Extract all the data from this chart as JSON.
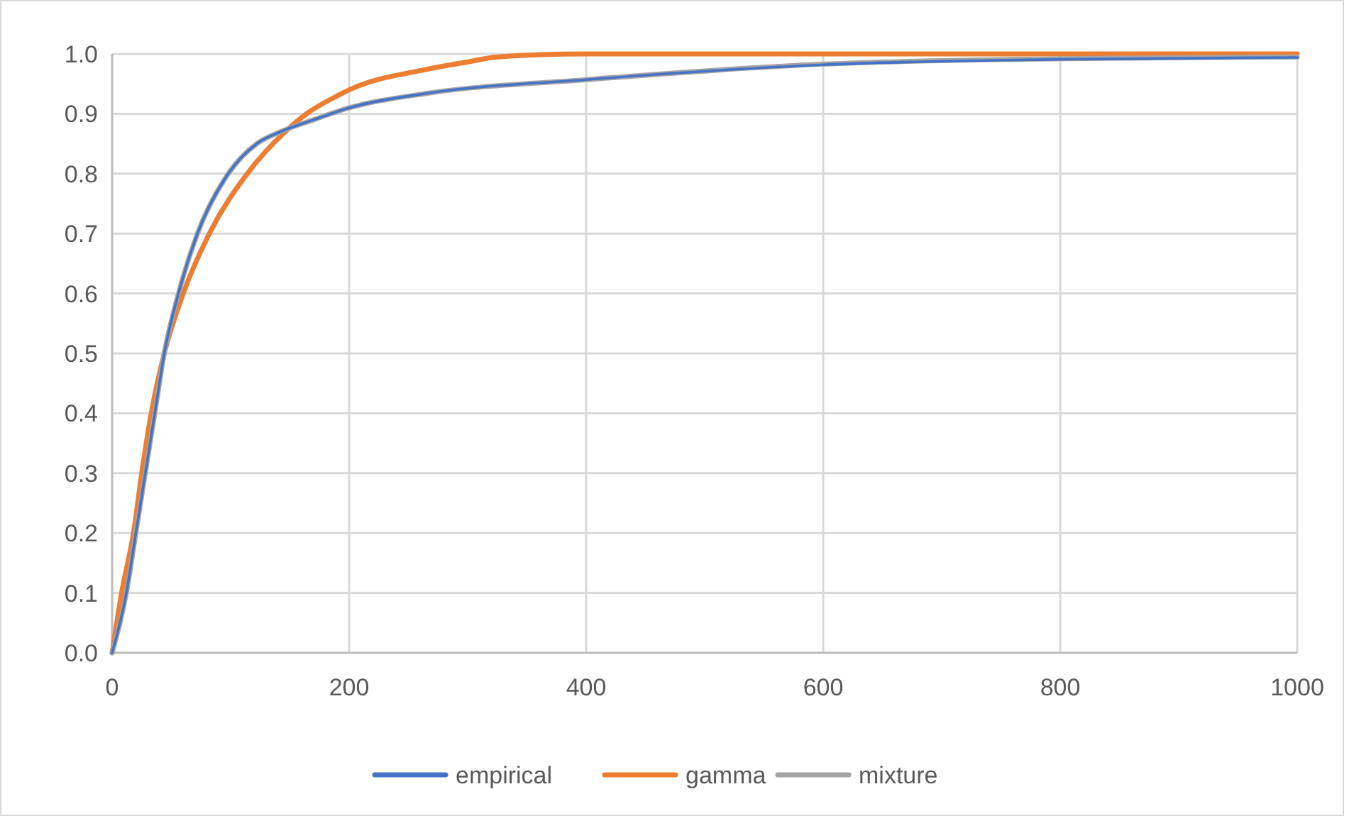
{
  "chart_data": {
    "type": "line",
    "xlim": [
      0,
      1000
    ],
    "ylim": [
      0,
      1
    ],
    "xticks": [
      0,
      200,
      400,
      600,
      800,
      1000
    ],
    "yticks": [
      {
        "value": 0,
        "label": "0.0"
      },
      0.1,
      0.2,
      0.3,
      0.4,
      0.5,
      0.6,
      0.7,
      0.8,
      0.9,
      {
        "value": 1,
        "label": "1.0"
      }
    ],
    "grid": true,
    "legend": "bottom",
    "line_style": "solid",
    "marker": "none",
    "series": [
      {
        "name": "empirical",
        "color": "#4472c4",
        "x": [
          0,
          12,
          20,
          28,
          36,
          44,
          56,
          72,
          98,
          122,
          142,
          170,
          200,
          265,
          400,
          600,
          800,
          1000
        ],
        "values": [
          0,
          0.1,
          0.2,
          0.3,
          0.4,
          0.5,
          0.6,
          0.7,
          0.8,
          0.85,
          0.87,
          0.89,
          0.91,
          0.934,
          0.957,
          0.982,
          0.991,
          0.994
        ]
      },
      {
        "name": "gamma",
        "color": "#ed7d31",
        "x": [
          0,
          8,
          18,
          25,
          33,
          44,
          60,
          82,
          114,
          146,
          164,
          190,
          200,
          265,
          301,
          325,
          400,
          600,
          800,
          1000
        ],
        "values": [
          0,
          0.1,
          0.2,
          0.3,
          0.4,
          0.5,
          0.6,
          0.7,
          0.8,
          0.87,
          0.9,
          0.93,
          0.94,
          0.974,
          0.987,
          0.995,
          1,
          1,
          1,
          1
        ]
      },
      {
        "name": "mixture",
        "color": "#a5a5a5",
        "x": [
          0,
          12,
          20,
          28,
          36,
          44,
          56,
          72,
          98,
          122,
          142,
          170,
          200,
          265,
          400,
          600,
          800,
          1000
        ],
        "values": [
          0,
          0.1,
          0.2,
          0.3,
          0.4,
          0.5,
          0.6,
          0.7,
          0.8,
          0.85,
          0.87,
          0.89,
          0.91,
          0.934,
          0.957,
          0.983,
          0.992,
          0.995
        ]
      }
    ]
  }
}
